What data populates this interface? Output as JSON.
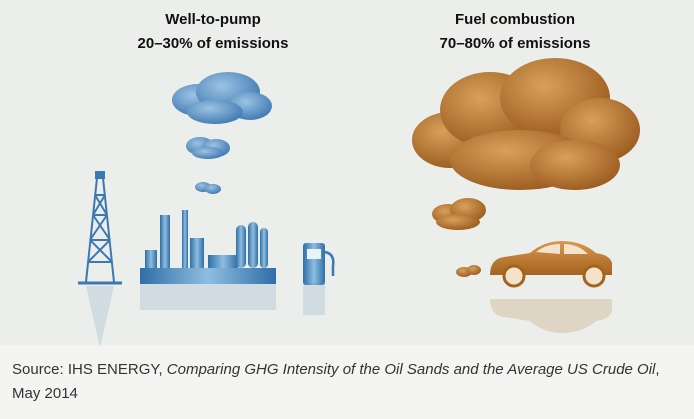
{
  "left": {
    "title": "Well-to-pump",
    "subtitle": "20–30% of emissions"
  },
  "right": {
    "title": "Fuel combustion",
    "subtitle": "70–80% of emissions"
  },
  "source": {
    "prefix": "Source: IHS ENERGY,",
    "title": "Comparing GHG Intensity of the Oil Sands and the Average US Crude Oil",
    "separator": ",",
    "date": "May 2014"
  }
}
